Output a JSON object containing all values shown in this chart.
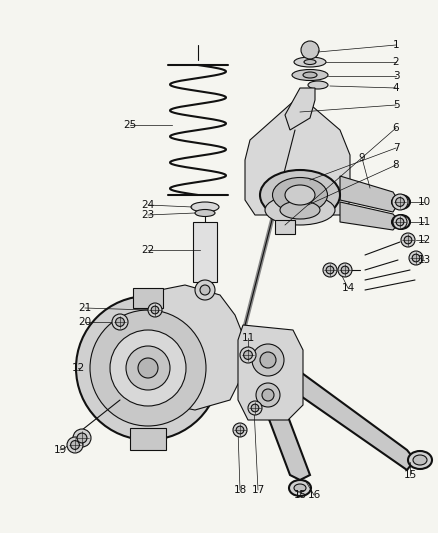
{
  "bg_color": "#f5f5f0",
  "line_color": "#111111",
  "label_color": "#111111",
  "fig_width": 4.38,
  "fig_height": 5.33,
  "dpi": 100
}
